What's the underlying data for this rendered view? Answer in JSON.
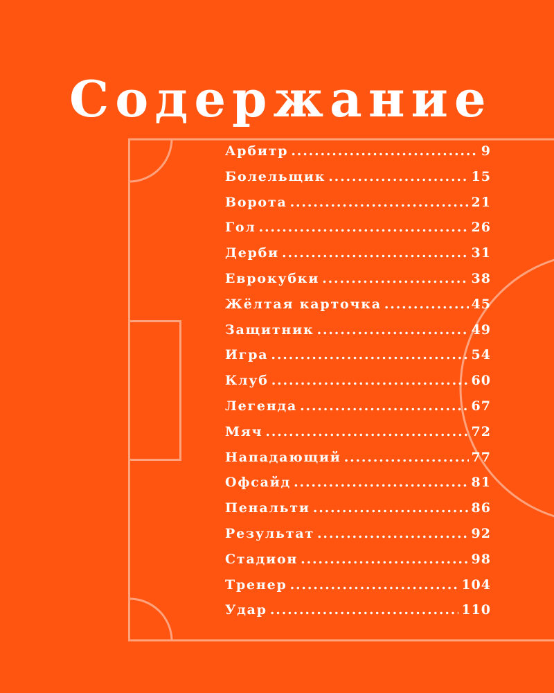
{
  "title": "Содержание",
  "colors": {
    "background": "#FF5510",
    "field_lines": "#FFA27E",
    "text": "#FFFFFF"
  },
  "entries": [
    {
      "title": "Арбитр",
      "page": "9"
    },
    {
      "title": "Болельщик",
      "page": "15"
    },
    {
      "title": "Ворота",
      "page": "21"
    },
    {
      "title": "Гол",
      "page": "26"
    },
    {
      "title": "Дерби",
      "page": "31"
    },
    {
      "title": "Еврокубки",
      "page": "38"
    },
    {
      "title": "Жёлтая карточка",
      "page": "45"
    },
    {
      "title": "Защитник",
      "page": "49"
    },
    {
      "title": "Игра",
      "page": "54"
    },
    {
      "title": "Клуб",
      "page": "60"
    },
    {
      "title": "Легенда",
      "page": "67"
    },
    {
      "title": "Мяч",
      "page": "72"
    },
    {
      "title": "Нападающий",
      "page": "77"
    },
    {
      "title": "Офсайд",
      "page": "81"
    },
    {
      "title": "Пенальти",
      "page": "86"
    },
    {
      "title": "Результат",
      "page": "92"
    },
    {
      "title": "Стадион",
      "page": "98"
    },
    {
      "title": "Тренер",
      "page": "104"
    },
    {
      "title": "Удар",
      "page": "110"
    }
  ]
}
